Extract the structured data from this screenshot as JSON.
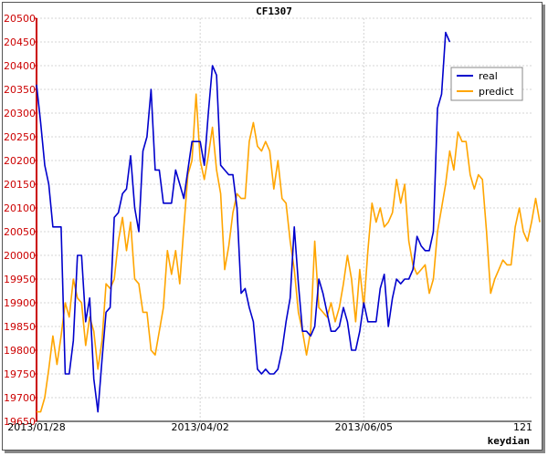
{
  "chart_data": {
    "type": "line",
    "title": "CF1307",
    "xlabel": "keydian",
    "ylabel": "",
    "xlim": [
      0,
      121
    ],
    "ylim": [
      19650,
      20500
    ],
    "yticks": [
      20500,
      20450,
      20400,
      20350,
      20300,
      20250,
      20200,
      20150,
      20100,
      20050,
      20000,
      19950,
      19900,
      19850,
      19800,
      19750,
      19700,
      19650
    ],
    "xtick_labels": [
      {
        "x": 0,
        "label": "2013/01/28"
      },
      {
        "x": 40,
        "label": "2013/04/02"
      },
      {
        "x": 80,
        "label": "2013/06/05"
      },
      {
        "x": 121,
        "label": "121"
      }
    ],
    "grid": true,
    "legend_position": "top-right",
    "colors": {
      "real": "#0000cc",
      "predict": "#ffa500",
      "yaxis": "#cc0000"
    },
    "series": [
      {
        "name": "real",
        "x_start": 0,
        "values": [
          20360,
          20280,
          20190,
          20150,
          20060,
          20060,
          20060,
          19750,
          19750,
          19820,
          20000,
          20000,
          19860,
          19910,
          19740,
          19670,
          19780,
          19880,
          19890,
          20080,
          20090,
          20130,
          20140,
          20210,
          20100,
          20050,
          20220,
          20250,
          20350,
          20180,
          20180,
          20110,
          20110,
          20110,
          20180,
          20150,
          20120,
          20180,
          20240,
          20240,
          20240,
          20190,
          20300,
          20400,
          20380,
          20190,
          20180,
          20170,
          20170,
          20100,
          19920,
          19930,
          19890,
          19860,
          19760,
          19750,
          19760,
          19750,
          19750,
          19760,
          19800,
          19860,
          19910,
          20060,
          19940,
          19840,
          19840,
          19830,
          19850,
          19950,
          19920,
          19880,
          19840,
          19840,
          19850,
          19890,
          19860,
          19800,
          19800,
          19840,
          19900,
          19860,
          19860,
          19860,
          19930,
          19960,
          19850,
          19910,
          19950,
          19940,
          19950,
          19950,
          19970,
          20040,
          20020,
          20010,
          20010,
          20050,
          20310,
          20340,
          20470,
          20450
        ]
      },
      {
        "name": "predict",
        "x_start": 0,
        "values": [
          19670,
          19670,
          19700,
          19760,
          19830,
          19770,
          19830,
          19900,
          19870,
          19950,
          19910,
          19900,
          19810,
          19870,
          19840,
          19760,
          19820,
          19940,
          19930,
          19950,
          20030,
          20080,
          20010,
          20070,
          19950,
          19940,
          19880,
          19880,
          19800,
          19790,
          19840,
          19890,
          20010,
          19960,
          20010,
          19940,
          20060,
          20170,
          20200,
          20340,
          20200,
          20160,
          20210,
          20270,
          20180,
          20130,
          19970,
          20020,
          20090,
          20130,
          20120,
          20120,
          20240,
          20280,
          20230,
          20220,
          20240,
          20220,
          20140,
          20200,
          20120,
          20110,
          20030,
          19970,
          19880,
          19840,
          19790,
          19840,
          20030,
          19890,
          19880,
          19870,
          19900,
          19860,
          19890,
          19940,
          20000,
          19950,
          19860,
          19970,
          19890,
          20010,
          20110,
          20070,
          20100,
          20060,
          20070,
          20090,
          20160,
          20110,
          20150,
          20030,
          19980,
          19960,
          19970,
          19980,
          19920,
          19950,
          20050,
          20100,
          20150,
          20220,
          20180,
          20260,
          20240,
          20240,
          20170,
          20140,
          20170,
          20160,
          20050,
          19920,
          19950,
          19970,
          19990,
          19980,
          19980,
          20060,
          20100,
          20050,
          20030,
          20070,
          20120,
          20070
        ]
      }
    ]
  }
}
